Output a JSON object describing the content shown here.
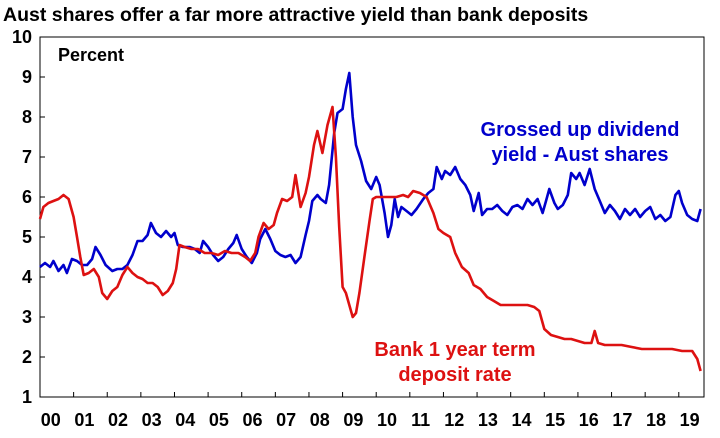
{
  "chart_data": {
    "type": "line",
    "title": "Aust shares offer a far more attractive yield than bank deposits",
    "ylabel": "Percent",
    "xlabel": "",
    "ylim": [
      1,
      10
    ],
    "xlim": [
      2000,
      2019.75
    ],
    "grid": false,
    "y_ticks": [
      "1",
      "2",
      "3",
      "4",
      "5",
      "6",
      "7",
      "8",
      "9",
      "10"
    ],
    "x_ticks": [
      "00",
      "01",
      "02",
      "03",
      "04",
      "05",
      "06",
      "07",
      "08",
      "09",
      "10",
      "11",
      "12",
      "13",
      "14",
      "15",
      "16",
      "17",
      "18",
      "19"
    ],
    "series": [
      {
        "name": "Grossed up dividend yield - Aust shares",
        "label_lines": [
          "Grossed up dividend",
          "yield - Aust shares"
        ],
        "color": "#0000cc",
        "points": [
          [
            2000.0,
            4.25
          ],
          [
            2000.15,
            4.35
          ],
          [
            2000.3,
            4.25
          ],
          [
            2000.4,
            4.4
          ],
          [
            2000.55,
            4.15
          ],
          [
            2000.7,
            4.3
          ],
          [
            2000.8,
            4.1
          ],
          [
            2000.95,
            4.45
          ],
          [
            2001.1,
            4.4
          ],
          [
            2001.25,
            4.3
          ],
          [
            2001.4,
            4.3
          ],
          [
            2001.55,
            4.45
          ],
          [
            2001.65,
            4.75
          ],
          [
            2001.8,
            4.55
          ],
          [
            2001.95,
            4.3
          ],
          [
            2002.15,
            4.15
          ],
          [
            2002.3,
            4.2
          ],
          [
            2002.45,
            4.2
          ],
          [
            2002.6,
            4.3
          ],
          [
            2002.75,
            4.55
          ],
          [
            2002.9,
            4.9
          ],
          [
            2003.05,
            4.9
          ],
          [
            2003.2,
            5.05
          ],
          [
            2003.3,
            5.35
          ],
          [
            2003.45,
            5.1
          ],
          [
            2003.6,
            5.0
          ],
          [
            2003.75,
            5.15
          ],
          [
            2003.9,
            5.0
          ],
          [
            2004.0,
            5.1
          ],
          [
            2004.1,
            4.8
          ],
          [
            2004.25,
            4.75
          ],
          [
            2004.45,
            4.75
          ],
          [
            2004.6,
            4.7
          ],
          [
            2004.75,
            4.6
          ],
          [
            2004.85,
            4.9
          ],
          [
            2005.0,
            4.75
          ],
          [
            2005.15,
            4.55
          ],
          [
            2005.3,
            4.4
          ],
          [
            2005.45,
            4.5
          ],
          [
            2005.6,
            4.7
          ],
          [
            2005.75,
            4.85
          ],
          [
            2005.85,
            5.05
          ],
          [
            2006.0,
            4.7
          ],
          [
            2006.15,
            4.5
          ],
          [
            2006.3,
            4.35
          ],
          [
            2006.45,
            4.6
          ],
          [
            2006.55,
            4.95
          ],
          [
            2006.7,
            5.2
          ],
          [
            2006.85,
            4.95
          ],
          [
            2007.0,
            4.65
          ],
          [
            2007.15,
            4.55
          ],
          [
            2007.3,
            4.5
          ],
          [
            2007.45,
            4.55
          ],
          [
            2007.6,
            4.35
          ],
          [
            2007.75,
            4.5
          ],
          [
            2007.9,
            5.05
          ],
          [
            2008.0,
            5.4
          ],
          [
            2008.1,
            5.9
          ],
          [
            2008.25,
            6.05
          ],
          [
            2008.35,
            5.95
          ],
          [
            2008.5,
            5.85
          ],
          [
            2008.6,
            6.3
          ],
          [
            2008.75,
            7.6
          ],
          [
            2008.85,
            8.1
          ],
          [
            2009.0,
            8.2
          ],
          [
            2009.1,
            8.7
          ],
          [
            2009.2,
            9.1
          ],
          [
            2009.3,
            8.0
          ],
          [
            2009.4,
            7.3
          ],
          [
            2009.55,
            6.9
          ],
          [
            2009.7,
            6.4
          ],
          [
            2009.85,
            6.2
          ],
          [
            2010.0,
            6.5
          ],
          [
            2010.1,
            6.3
          ],
          [
            2010.25,
            5.6
          ],
          [
            2010.35,
            5.0
          ],
          [
            2010.45,
            5.3
          ],
          [
            2010.55,
            5.95
          ],
          [
            2010.65,
            5.5
          ],
          [
            2010.75,
            5.75
          ],
          [
            2010.9,
            5.65
          ],
          [
            2011.05,
            5.55
          ],
          [
            2011.2,
            5.7
          ],
          [
            2011.4,
            5.95
          ],
          [
            2011.55,
            6.1
          ],
          [
            2011.7,
            6.2
          ],
          [
            2011.8,
            6.75
          ],
          [
            2011.95,
            6.45
          ],
          [
            2012.05,
            6.65
          ],
          [
            2012.2,
            6.55
          ],
          [
            2012.35,
            6.75
          ],
          [
            2012.5,
            6.45
          ],
          [
            2012.65,
            6.3
          ],
          [
            2012.8,
            6.05
          ],
          [
            2012.9,
            5.65
          ],
          [
            2013.05,
            6.1
          ],
          [
            2013.15,
            5.55
          ],
          [
            2013.3,
            5.7
          ],
          [
            2013.45,
            5.7
          ],
          [
            2013.6,
            5.8
          ],
          [
            2013.75,
            5.65
          ],
          [
            2013.9,
            5.55
          ],
          [
            2014.05,
            5.75
          ],
          [
            2014.2,
            5.8
          ],
          [
            2014.35,
            5.7
          ],
          [
            2014.5,
            5.95
          ],
          [
            2014.65,
            5.8
          ],
          [
            2014.8,
            5.95
          ],
          [
            2014.95,
            5.6
          ],
          [
            2015.05,
            5.9
          ],
          [
            2015.15,
            6.2
          ],
          [
            2015.3,
            5.85
          ],
          [
            2015.4,
            5.7
          ],
          [
            2015.55,
            5.8
          ],
          [
            2015.7,
            6.05
          ],
          [
            2015.8,
            6.6
          ],
          [
            2015.95,
            6.45
          ],
          [
            2016.05,
            6.6
          ],
          [
            2016.2,
            6.3
          ],
          [
            2016.35,
            6.7
          ],
          [
            2016.5,
            6.2
          ],
          [
            2016.65,
            5.9
          ],
          [
            2016.8,
            5.6
          ],
          [
            2016.95,
            5.8
          ],
          [
            2017.1,
            5.65
          ],
          [
            2017.25,
            5.45
          ],
          [
            2017.4,
            5.7
          ],
          [
            2017.55,
            5.55
          ],
          [
            2017.7,
            5.7
          ],
          [
            2017.85,
            5.5
          ],
          [
            2018.0,
            5.65
          ],
          [
            2018.15,
            5.75
          ],
          [
            2018.3,
            5.45
          ],
          [
            2018.45,
            5.55
          ],
          [
            2018.6,
            5.4
          ],
          [
            2018.75,
            5.5
          ],
          [
            2018.9,
            6.05
          ],
          [
            2019.0,
            6.15
          ],
          [
            2019.1,
            5.85
          ],
          [
            2019.25,
            5.55
          ],
          [
            2019.4,
            5.45
          ],
          [
            2019.55,
            5.4
          ],
          [
            2019.65,
            5.7
          ]
        ]
      },
      {
        "name": "Bank 1 year term deposit rate",
        "label_lines": [
          "Bank 1 year term",
          "deposit rate"
        ],
        "color": "#dd1111",
        "points": [
          [
            2000.0,
            5.45
          ],
          [
            2000.1,
            5.75
          ],
          [
            2000.25,
            5.85
          ],
          [
            2000.4,
            5.9
          ],
          [
            2000.55,
            5.95
          ],
          [
            2000.7,
            6.05
          ],
          [
            2000.85,
            5.95
          ],
          [
            2001.0,
            5.5
          ],
          [
            2001.1,
            5.0
          ],
          [
            2001.2,
            4.5
          ],
          [
            2001.3,
            4.05
          ],
          [
            2001.45,
            4.1
          ],
          [
            2001.6,
            4.2
          ],
          [
            2001.75,
            4.0
          ],
          [
            2001.85,
            3.6
          ],
          [
            2002.0,
            3.45
          ],
          [
            2002.15,
            3.65
          ],
          [
            2002.3,
            3.75
          ],
          [
            2002.45,
            4.05
          ],
          [
            2002.6,
            4.25
          ],
          [
            2002.75,
            4.1
          ],
          [
            2002.9,
            4.0
          ],
          [
            2003.05,
            3.95
          ],
          [
            2003.2,
            3.85
          ],
          [
            2003.35,
            3.85
          ],
          [
            2003.5,
            3.75
          ],
          [
            2003.65,
            3.55
          ],
          [
            2003.8,
            3.65
          ],
          [
            2003.95,
            3.85
          ],
          [
            2004.05,
            4.2
          ],
          [
            2004.15,
            4.8
          ],
          [
            2004.3,
            4.75
          ],
          [
            2004.5,
            4.7
          ],
          [
            2004.7,
            4.7
          ],
          [
            2004.9,
            4.6
          ],
          [
            2005.1,
            4.6
          ],
          [
            2005.3,
            4.55
          ],
          [
            2005.5,
            4.65
          ],
          [
            2005.7,
            4.6
          ],
          [
            2005.9,
            4.6
          ],
          [
            2006.1,
            4.5
          ],
          [
            2006.25,
            4.4
          ],
          [
            2006.4,
            4.6
          ],
          [
            2006.5,
            5.0
          ],
          [
            2006.65,
            5.35
          ],
          [
            2006.8,
            5.2
          ],
          [
            2006.95,
            5.3
          ],
          [
            2007.05,
            5.6
          ],
          [
            2007.2,
            5.95
          ],
          [
            2007.35,
            5.9
          ],
          [
            2007.5,
            6.0
          ],
          [
            2007.6,
            6.55
          ],
          [
            2007.75,
            5.75
          ],
          [
            2007.9,
            6.1
          ],
          [
            2008.0,
            6.5
          ],
          [
            2008.15,
            7.3
          ],
          [
            2008.25,
            7.65
          ],
          [
            2008.4,
            7.1
          ],
          [
            2008.55,
            7.8
          ],
          [
            2008.7,
            8.25
          ],
          [
            2008.8,
            7.0
          ],
          [
            2008.9,
            5.25
          ],
          [
            2009.0,
            3.75
          ],
          [
            2009.1,
            3.6
          ],
          [
            2009.2,
            3.3
          ],
          [
            2009.3,
            3.0
          ],
          [
            2009.4,
            3.1
          ],
          [
            2009.5,
            3.6
          ],
          [
            2009.65,
            4.5
          ],
          [
            2009.8,
            5.4
          ],
          [
            2009.9,
            5.95
          ],
          [
            2010.0,
            6.0
          ],
          [
            2010.2,
            6.0
          ],
          [
            2010.4,
            6.0
          ],
          [
            2010.6,
            6.0
          ],
          [
            2010.8,
            6.05
          ],
          [
            2010.95,
            6.0
          ],
          [
            2011.1,
            6.15
          ],
          [
            2011.3,
            6.1
          ],
          [
            2011.5,
            6.0
          ],
          [
            2011.7,
            5.6
          ],
          [
            2011.85,
            5.2
          ],
          [
            2012.0,
            5.1
          ],
          [
            2012.2,
            5.0
          ],
          [
            2012.35,
            4.6
          ],
          [
            2012.55,
            4.25
          ],
          [
            2012.75,
            4.1
          ],
          [
            2012.9,
            3.8
          ],
          [
            2013.1,
            3.7
          ],
          [
            2013.3,
            3.5
          ],
          [
            2013.5,
            3.4
          ],
          [
            2013.7,
            3.3
          ],
          [
            2013.9,
            3.3
          ],
          [
            2014.1,
            3.3
          ],
          [
            2014.3,
            3.3
          ],
          [
            2014.5,
            3.3
          ],
          [
            2014.7,
            3.25
          ],
          [
            2014.85,
            3.15
          ],
          [
            2015.0,
            2.7
          ],
          [
            2015.2,
            2.55
          ],
          [
            2015.4,
            2.5
          ],
          [
            2015.6,
            2.45
          ],
          [
            2015.8,
            2.45
          ],
          [
            2016.0,
            2.4
          ],
          [
            2016.2,
            2.35
          ],
          [
            2016.4,
            2.35
          ],
          [
            2016.5,
            2.65
          ],
          [
            2016.6,
            2.35
          ],
          [
            2016.8,
            2.3
          ],
          [
            2017.0,
            2.3
          ],
          [
            2017.3,
            2.3
          ],
          [
            2017.6,
            2.25
          ],
          [
            2017.9,
            2.2
          ],
          [
            2018.2,
            2.2
          ],
          [
            2018.5,
            2.2
          ],
          [
            2018.8,
            2.2
          ],
          [
            2019.1,
            2.15
          ],
          [
            2019.4,
            2.15
          ],
          [
            2019.55,
            1.95
          ],
          [
            2019.65,
            1.65
          ]
        ]
      }
    ]
  }
}
